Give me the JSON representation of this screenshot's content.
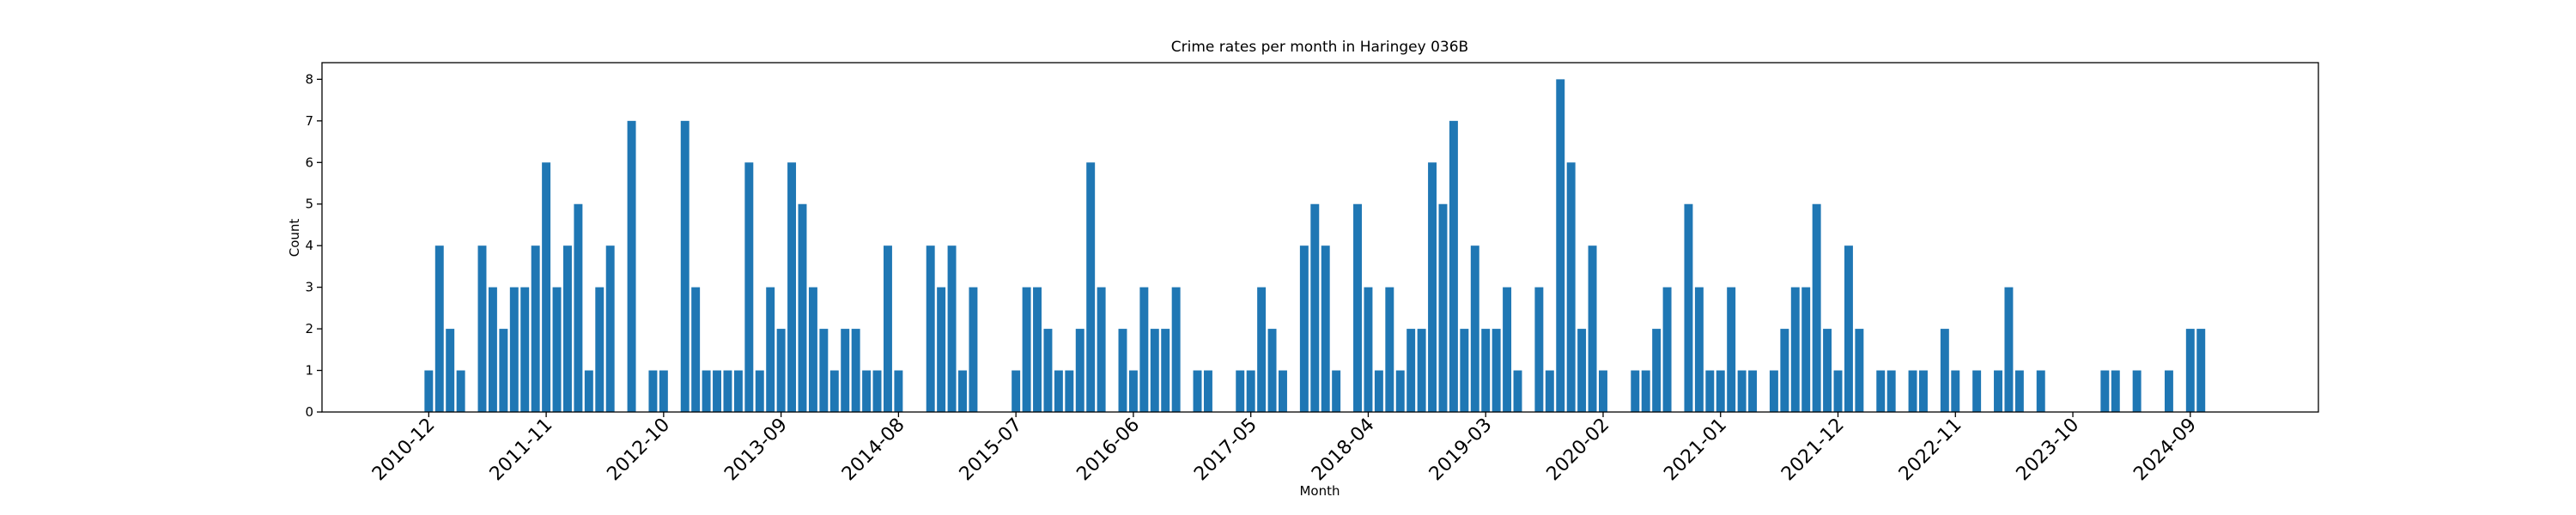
{
  "chart_data": {
    "type": "bar",
    "title": "Crime rates per month in Haringey 036B",
    "xlabel": "Month",
    "ylabel": "Count",
    "color": "#1f77b4",
    "x": [
      "2010-12",
      "2011-01",
      "2011-02",
      "2011-03",
      "2011-05",
      "2011-06",
      "2011-07",
      "2011-08",
      "2011-09",
      "2011-10",
      "2011-11",
      "2011-12",
      "2012-01",
      "2012-02",
      "2012-03",
      "2012-04",
      "2012-05",
      "2012-07",
      "2012-09",
      "2012-10",
      "2012-12",
      "2013-01",
      "2013-02",
      "2013-03",
      "2013-04",
      "2013-05",
      "2013-06",
      "2013-07",
      "2013-08",
      "2013-09",
      "2013-10",
      "2013-11",
      "2013-12",
      "2014-01",
      "2014-02",
      "2014-03",
      "2014-04",
      "2014-05",
      "2014-06",
      "2014-07",
      "2014-08",
      "2014-11",
      "2014-12",
      "2015-01",
      "2015-02",
      "2015-03",
      "2015-07",
      "2015-08",
      "2015-09",
      "2015-10",
      "2015-11",
      "2015-12",
      "2016-01",
      "2016-02",
      "2016-03",
      "2016-05",
      "2016-06",
      "2016-07",
      "2016-08",
      "2016-09",
      "2016-10",
      "2016-12",
      "2017-01",
      "2017-04",
      "2017-05",
      "2017-06",
      "2017-07",
      "2017-08",
      "2017-10",
      "2017-11",
      "2017-12",
      "2018-01",
      "2018-03",
      "2018-04",
      "2018-05",
      "2018-06",
      "2018-07",
      "2018-08",
      "2018-09",
      "2018-10",
      "2018-11",
      "2018-12",
      "2019-01",
      "2019-02",
      "2019-03",
      "2019-04",
      "2019-05",
      "2019-06",
      "2019-08",
      "2019-09",
      "2019-10",
      "2019-11",
      "2019-12",
      "2020-01",
      "2020-02",
      "2020-05",
      "2020-06",
      "2020-07",
      "2020-08",
      "2020-10",
      "2020-11",
      "2020-12",
      "2021-01",
      "2021-02",
      "2021-03",
      "2021-04",
      "2021-06",
      "2021-07",
      "2021-08",
      "2021-09",
      "2021-10",
      "2021-11",
      "2021-12",
      "2022-01",
      "2022-02",
      "2022-04",
      "2022-05",
      "2022-07",
      "2022-08",
      "2022-10",
      "2022-11",
      "2023-01",
      "2023-03",
      "2023-04",
      "2023-05",
      "2023-07",
      "2024-01",
      "2024-02",
      "2024-04",
      "2024-07",
      "2024-09",
      "2024-10"
    ],
    "values": [
      1,
      4,
      2,
      1,
      4,
      3,
      2,
      3,
      3,
      4,
      6,
      3,
      4,
      5,
      1,
      3,
      4,
      7,
      1,
      1,
      7,
      3,
      1,
      1,
      1,
      1,
      6,
      1,
      3,
      2,
      6,
      5,
      3,
      2,
      1,
      2,
      2,
      1,
      1,
      4,
      1,
      4,
      3,
      4,
      1,
      3,
      1,
      3,
      3,
      2,
      1,
      1,
      2,
      6,
      3,
      2,
      1,
      3,
      2,
      2,
      3,
      1,
      1,
      1,
      1,
      3,
      2,
      1,
      4,
      5,
      4,
      1,
      5,
      3,
      1,
      3,
      1,
      2,
      2,
      6,
      5,
      7,
      2,
      4,
      2,
      2,
      3,
      1,
      3,
      1,
      8,
      6,
      2,
      4,
      1,
      1,
      1,
      2,
      3,
      5,
      3,
      1,
      1,
      3,
      1,
      1,
      1,
      2,
      3,
      3,
      5,
      2,
      1,
      4,
      2,
      1,
      1,
      1,
      1,
      2,
      1,
      1,
      1,
      3,
      1,
      1,
      1,
      1,
      1,
      1,
      2,
      2
    ],
    "xlim": [
      "2010-02",
      "2025-09"
    ],
    "xticks": [
      "2010-12",
      "2011-11",
      "2012-10",
      "2013-09",
      "2014-08",
      "2015-07",
      "2016-06",
      "2017-05",
      "2018-04",
      "2019-03",
      "2020-02",
      "2021-01",
      "2021-12",
      "2022-11",
      "2023-10",
      "2024-09"
    ],
    "ylim": [
      0,
      8.4
    ],
    "yticks": [
      0,
      1,
      2,
      3,
      4,
      5,
      6,
      7,
      8
    ]
  }
}
